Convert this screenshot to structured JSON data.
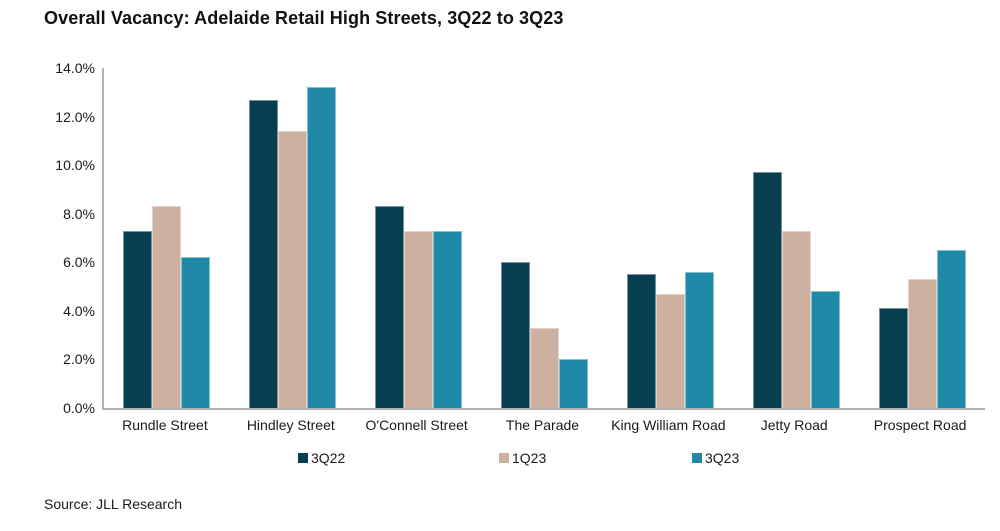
{
  "page": {
    "title": "Overall Vacancy: Adelaide Retail High Streets, 3Q22 to 3Q23",
    "source": "Source: JLL Research"
  },
  "colors": {
    "series_3q22": "#073f51",
    "series_1q23": "#ccb0a0",
    "series_3q23": "#2189a8",
    "axis_line": "#b3b3b3",
    "text": "#1a1a1a"
  },
  "chart_data": {
    "type": "bar",
    "title": "Overall Vacancy: Adelaide Retail High Streets, 3Q22 to 3Q23",
    "categories": [
      "Rundle Street",
      "Hindley Street",
      "O'Connell Street",
      "The Parade",
      "King William Road",
      "Jetty Road",
      "Prospect Road"
    ],
    "series": [
      {
        "name": "3Q22",
        "color": "#073f51",
        "values": [
          7.3,
          12.7,
          8.3,
          6.0,
          5.5,
          9.7,
          4.1
        ]
      },
      {
        "name": "1Q23",
        "color": "#ccb0a0",
        "values": [
          8.3,
          11.4,
          7.3,
          3.3,
          4.7,
          7.3,
          5.3
        ]
      },
      {
        "name": "3Q23",
        "color": "#2189a8",
        "values": [
          6.2,
          13.2,
          7.3,
          2.0,
          5.6,
          4.8,
          6.5
        ]
      }
    ],
    "xlabel": "",
    "ylabel": "",
    "ylim": [
      0,
      14
    ],
    "ytick_step": 2,
    "ytick_labels": [
      "0.0%",
      "2.0%",
      "4.0%",
      "6.0%",
      "8.0%",
      "10.0%",
      "12.0%",
      "14.0%"
    ],
    "value_unit": "%",
    "grid": false,
    "legend_position": "bottom"
  }
}
